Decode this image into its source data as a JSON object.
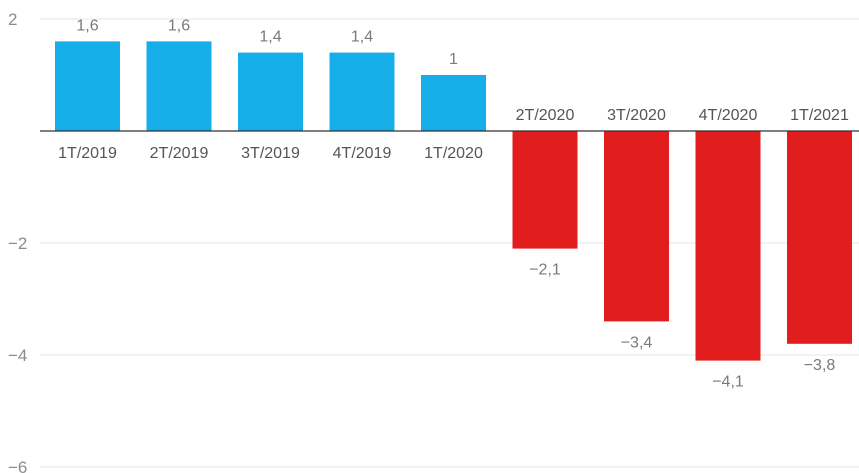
{
  "chart_data": {
    "type": "bar",
    "categories": [
      "1T/2019",
      "2T/2019",
      "3T/2019",
      "4T/2019",
      "1T/2020",
      "2T/2020",
      "3T/2020",
      "4T/2020",
      "1T/2021"
    ],
    "values": [
      1.6,
      1.6,
      1.4,
      1.4,
      1,
      -2.1,
      -3.4,
      -4.1,
      -3.8
    ],
    "value_labels": [
      "1,6",
      "1,6",
      "1,4",
      "1,4",
      "1",
      "−2,1",
      "−3,4",
      "−4,1",
      "−3,8"
    ],
    "y_ticks": [
      2,
      -2,
      -4,
      -6
    ],
    "y_tick_labels": [
      "2",
      "−2",
      "−4",
      "−6"
    ],
    "ylim": [
      -6,
      2
    ],
    "title": "",
    "xlabel": "",
    "ylabel": "",
    "grid": true,
    "legend": "none",
    "colors": {
      "positive": "#15aee8",
      "negative": "#e21d1d",
      "grid": "#e6e6e6",
      "axis": "#333333"
    }
  }
}
